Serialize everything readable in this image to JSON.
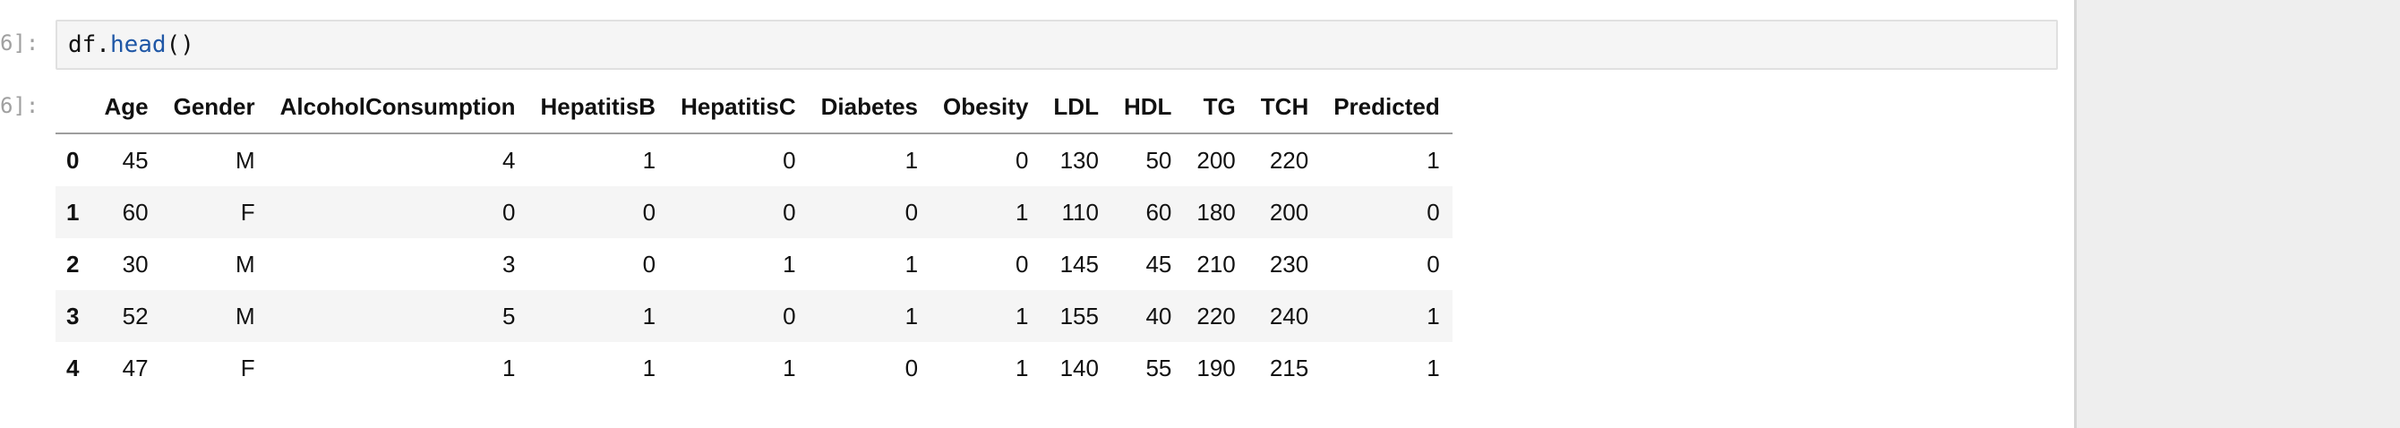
{
  "cell": {
    "input_prompt": "6]:",
    "output_prompt": "6]:",
    "code_obj": "df.",
    "code_fn": "head",
    "code_args": "()"
  },
  "table": {
    "columns": [
      "",
      "Age",
      "Gender",
      "AlcoholConsumption",
      "HepatitisB",
      "HepatitisC",
      "Diabetes",
      "Obesity",
      "LDL",
      "HDL",
      "TG",
      "TCH",
      "Predicted"
    ],
    "rows": [
      {
        "index": "0",
        "values": [
          "45",
          "M",
          "4",
          "1",
          "0",
          "1",
          "0",
          "130",
          "50",
          "200",
          "220",
          "1"
        ]
      },
      {
        "index": "1",
        "values": [
          "60",
          "F",
          "0",
          "0",
          "0",
          "0",
          "1",
          "110",
          "60",
          "180",
          "200",
          "0"
        ]
      },
      {
        "index": "2",
        "values": [
          "30",
          "M",
          "3",
          "0",
          "1",
          "1",
          "0",
          "145",
          "45",
          "210",
          "230",
          "0"
        ]
      },
      {
        "index": "3",
        "values": [
          "52",
          "M",
          "5",
          "1",
          "0",
          "1",
          "1",
          "155",
          "40",
          "220",
          "240",
          "1"
        ]
      },
      {
        "index": "4",
        "values": [
          "47",
          "F",
          "1",
          "1",
          "1",
          "0",
          "1",
          "140",
          "55",
          "190",
          "215",
          "1"
        ]
      }
    ]
  }
}
